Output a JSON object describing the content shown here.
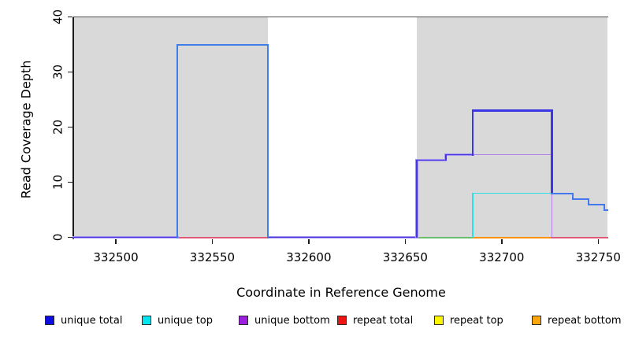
{
  "chart_data": {
    "type": "line",
    "subtype": "step-coverage-plot",
    "title": "",
    "xlabel": "Coordinate in Reference Genome",
    "ylabel": "Read Coverage Depth",
    "xlim": [
      332478,
      332755
    ],
    "ylim": [
      0,
      40
    ],
    "grid": false,
    "x_ticks": [
      {
        "value": 332500,
        "label": "332500"
      },
      {
        "value": 332550,
        "label": "332550"
      },
      {
        "value": 332600,
        "label": "332600"
      },
      {
        "value": 332650,
        "label": "332650"
      },
      {
        "value": 332700,
        "label": "332700"
      },
      {
        "value": 332750,
        "label": "332750"
      }
    ],
    "y_ticks": [
      {
        "value": 0,
        "label": "0"
      },
      {
        "value": 10,
        "label": "10"
      },
      {
        "value": 20,
        "label": "20"
      },
      {
        "value": 30,
        "label": "30"
      },
      {
        "value": 40,
        "label": "40"
      }
    ],
    "shaded_regions": [
      {
        "x0": 332478,
        "x1": 332579,
        "color": "#d9d9d9"
      },
      {
        "x0": 332656,
        "x1": 332755,
        "color": "#d9d9d9"
      }
    ],
    "top_boundary_line": {
      "y": 40,
      "color": "#4f4f4f"
    },
    "legend": {
      "position": "bottom",
      "entries": [
        {
          "label": "unique total",
          "color": "#0d0de0"
        },
        {
          "label": "unique top",
          "color": "#00e5ee"
        },
        {
          "label": "unique bottom",
          "color": "#9c1fe0"
        },
        {
          "label": "repeat total",
          "color": "#ee1414"
        },
        {
          "label": "repeat top",
          "color": "#fdf500"
        },
        {
          "label": "repeat bottom",
          "color": "#ffa60d"
        }
      ]
    },
    "series": [
      {
        "name": "unique total",
        "color": "#0d0de0",
        "runs": [
          [
            [
              332478,
              0
            ],
            [
              332532,
              0
            ],
            [
              332532,
              35
            ],
            [
              332579,
              35
            ],
            [
              332579,
              0
            ],
            [
              332656,
              0
            ],
            [
              332656,
              14
            ],
            [
              332671,
              14
            ],
            [
              332671,
              15
            ],
            [
              332685,
              15
            ],
            [
              332685,
              23
            ],
            [
              332726,
              23
            ],
            [
              332726,
              8
            ],
            [
              332737,
              8
            ],
            [
              332737,
              7
            ],
            [
              332745,
              7
            ],
            [
              332745,
              6
            ],
            [
              332753,
              6
            ],
            [
              332753,
              5
            ],
            [
              332755,
              5
            ]
          ]
        ]
      },
      {
        "name": "unique top",
        "color": "#00e5ee",
        "runs": [
          [
            [
              332685,
              0
            ],
            [
              332685,
              8
            ],
            [
              332726,
              8
            ],
            [
              332726,
              0
            ]
          ]
        ]
      },
      {
        "name": "unique bottom",
        "color": "#9c1fe0",
        "runs": [
          [
            [
              332478,
              0
            ],
            [
              332656,
              0
            ],
            [
              332656,
              14
            ],
            [
              332671,
              14
            ],
            [
              332671,
              15
            ],
            [
              332726,
              15
            ],
            [
              332726,
              0
            ]
          ]
        ]
      },
      {
        "name": "repeat total",
        "color": "#ee1414",
        "runs": [
          [
            [
              332532,
              0
            ],
            [
              332579,
              0
            ]
          ],
          [
            [
              332726,
              0
            ],
            [
              332755,
              0
            ]
          ]
        ]
      },
      {
        "name": "repeat top",
        "color": "#fdf500",
        "runs": [
          [
            [
              332656,
              0
            ],
            [
              332685,
              0
            ]
          ]
        ]
      },
      {
        "name": "repeat bottom",
        "color": "#ffa60d",
        "runs": [
          [
            [
              332685,
              0
            ],
            [
              332726,
              0
            ]
          ]
        ]
      }
    ],
    "visual_segments": [
      {
        "t": "h",
        "y": 0,
        "from": 332532,
        "to": 332579,
        "color": "#e25877",
        "lw": 2
      },
      {
        "t": "h",
        "y": 0,
        "from": 332656,
        "to": 332685,
        "color": "#69be6d",
        "lw": 2
      },
      {
        "t": "h",
        "y": 0,
        "from": 332685,
        "to": 332726,
        "color": "#ff9100",
        "lw": 2
      },
      {
        "t": "h",
        "y": 0,
        "from": 332726,
        "to": 332755,
        "color": "#e25877",
        "lw": 2
      },
      {
        "t": "h",
        "y": 0,
        "from": 332478,
        "to": 332532,
        "color": "#a391ec",
        "lw": 3.2
      },
      {
        "t": "h",
        "y": 0,
        "from": 332579,
        "to": 332656,
        "color": "#a391ec",
        "lw": 3.2
      },
      {
        "t": "h",
        "y": 0,
        "from": 332478,
        "to": 332532,
        "color": "#4437e4",
        "lw": 1.8
      },
      {
        "t": "h",
        "y": 0,
        "from": 332579,
        "to": 332656,
        "color": "#4437e4",
        "lw": 1.8
      },
      {
        "t": "h",
        "y": 15,
        "from": 332685,
        "to": 332726,
        "color": "#b37fe8",
        "lw": 1.6
      },
      {
        "t": "v",
        "x": 332726,
        "from": 0,
        "to": 15,
        "color": "#b37fe8",
        "lw": 1.6
      },
      {
        "t": "v",
        "x": 332685,
        "from": 0,
        "to": 8,
        "color": "#2bdfe8",
        "lw": 1.6
      },
      {
        "t": "h",
        "y": 8,
        "from": 332685,
        "to": 332726,
        "color": "#2bdfe8",
        "lw": 1.6
      },
      {
        "t": "v",
        "x": 332656,
        "from": 0,
        "to": 14,
        "color": "#a391ec",
        "lw": 3.2
      },
      {
        "t": "h",
        "y": 14,
        "from": 332656,
        "to": 332671,
        "color": "#a391ec",
        "lw": 3.2
      },
      {
        "t": "v",
        "x": 332671,
        "from": 14,
        "to": 15,
        "color": "#a391ec",
        "lw": 3.2
      },
      {
        "t": "h",
        "y": 15,
        "from": 332671,
        "to": 332685,
        "color": "#a391ec",
        "lw": 3.2
      },
      {
        "t": "v",
        "x": 332656,
        "from": 0,
        "to": 14,
        "color": "#4437e4",
        "lw": 1.8
      },
      {
        "t": "h",
        "y": 14,
        "from": 332656,
        "to": 332671,
        "color": "#4437e4",
        "lw": 1.8
      },
      {
        "t": "v",
        "x": 332671,
        "from": 14,
        "to": 15,
        "color": "#4437e4",
        "lw": 1.8
      },
      {
        "t": "h",
        "y": 15,
        "from": 332671,
        "to": 332685,
        "color": "#4437e4",
        "lw": 1.8
      },
      {
        "t": "v",
        "x": 332685,
        "from": 15,
        "to": 23,
        "color": "#3b36e6",
        "lw": 2.2
      },
      {
        "t": "h",
        "y": 23,
        "from": 332685,
        "to": 332726,
        "color": "#3b36e6",
        "lw": 2.2
      },
      {
        "t": "v",
        "x": 332726,
        "from": 8,
        "to": 23,
        "color": "#3b36e6",
        "lw": 2.2
      },
      {
        "t": "h",
        "y": 8,
        "from": 332726,
        "to": 332737,
        "color": "#4478ec",
        "lw": 2
      },
      {
        "t": "v",
        "x": 332737,
        "from": 7,
        "to": 8,
        "color": "#4478ec",
        "lw": 2
      },
      {
        "t": "h",
        "y": 7,
        "from": 332737,
        "to": 332745,
        "color": "#4478ec",
        "lw": 2
      },
      {
        "t": "v",
        "x": 332745,
        "from": 6,
        "to": 7,
        "color": "#4478ec",
        "lw": 2
      },
      {
        "t": "h",
        "y": 6,
        "from": 332745,
        "to": 332753,
        "color": "#4478ec",
        "lw": 2
      },
      {
        "t": "v",
        "x": 332753,
        "from": 5,
        "to": 6,
        "color": "#4478ec",
        "lw": 2
      },
      {
        "t": "h",
        "y": 5,
        "from": 332753,
        "to": 332755,
        "color": "#4478ec",
        "lw": 2
      },
      {
        "t": "v",
        "x": 332532,
        "from": 0,
        "to": 35,
        "color": "#3f7de9",
        "lw": 2
      },
      {
        "t": "h",
        "y": 35,
        "from": 332532,
        "to": 332579,
        "color": "#3f7de9",
        "lw": 2
      },
      {
        "t": "v",
        "x": 332579,
        "from": 0,
        "to": 35,
        "color": "#3f7de9",
        "lw": 2
      }
    ]
  }
}
